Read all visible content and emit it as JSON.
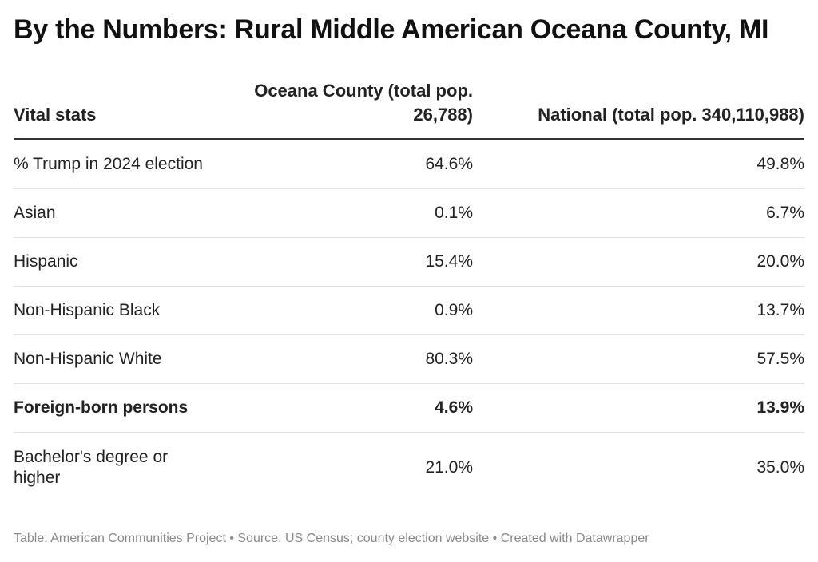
{
  "title": "By the Numbers: Rural Middle American Oceana County, MI",
  "chart_data": {
    "type": "table",
    "columns": [
      "Vital stats",
      "Oceana County (total pop. 26,788)",
      "National (total pop. 340,110,988)"
    ],
    "rows": [
      {
        "label": "% Trump in 2024 election",
        "county": "64.6%",
        "national": "49.8%",
        "bold": false
      },
      {
        "label": "Asian",
        "county": "0.1%",
        "national": "6.7%",
        "bold": false
      },
      {
        "label": "Hispanic",
        "county": "15.4%",
        "national": "20.0%",
        "bold": false
      },
      {
        "label": "Non-Hispanic Black",
        "county": "0.9%",
        "national": "13.7%",
        "bold": false
      },
      {
        "label": "Non-Hispanic White",
        "county": "80.3%",
        "national": "57.5%",
        "bold": false
      },
      {
        "label": "Foreign-born persons",
        "county": "4.6%",
        "national": "13.9%",
        "bold": true
      },
      {
        "label": "Bachelor's degree or higher",
        "county": "21.0%",
        "national": "35.0%",
        "bold": false
      }
    ]
  },
  "footer": "Table: American Communities Project • Source: US Census; county election website • Created with Datawrapper"
}
